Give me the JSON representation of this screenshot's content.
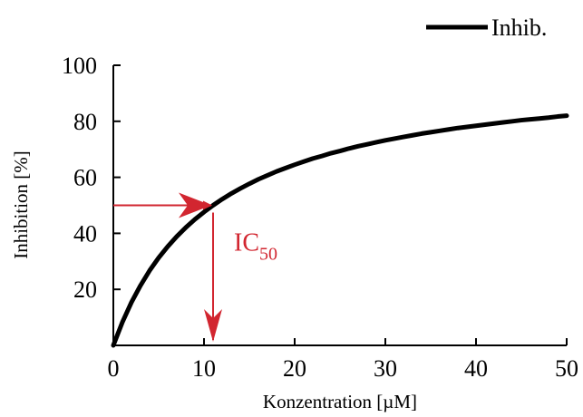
{
  "chart_data": {
    "type": "line",
    "title": "",
    "xlabel": "Konzentration [µM]",
    "ylabel": "Inhibition [%]",
    "xlim": [
      0,
      50
    ],
    "ylim": [
      0,
      100
    ],
    "x_ticks": [
      "0",
      "10",
      "20",
      "30",
      "40",
      "50"
    ],
    "y_ticks": [
      "20",
      "40",
      "60",
      "80",
      "100"
    ],
    "grid": false,
    "legend_position": "top-right",
    "series": [
      {
        "name": "Inhib.",
        "color": "#000000",
        "x": [
          0,
          1,
          2,
          3,
          4,
          5,
          6,
          7,
          8,
          9,
          10,
          11,
          12,
          13,
          14,
          15,
          16,
          17,
          18,
          19,
          20,
          21,
          22,
          23,
          24,
          25,
          26,
          27,
          28,
          29,
          30,
          31,
          32,
          33,
          34,
          35,
          36,
          37,
          38,
          39,
          40,
          41,
          42,
          43,
          44,
          45,
          46,
          47,
          48,
          49,
          50
        ],
        "y": [
          0,
          8.3,
          15.4,
          21.4,
          26.7,
          31.3,
          35.3,
          38.9,
          42.1,
          45,
          47.6,
          50,
          52.2,
          54.2,
          56,
          57.7,
          59.3,
          60.7,
          62.1,
          63.3,
          64.5,
          65.6,
          66.7,
          67.6,
          68.6,
          69.4,
          70.3,
          71.1,
          71.8,
          72.5,
          73.2,
          73.8,
          74.4,
          75,
          75.6,
          76.1,
          76.6,
          77.1,
          77.6,
          78,
          78.4,
          78.8,
          79.2,
          79.6,
          80,
          80.4,
          80.7,
          81,
          81.3,
          81.7,
          82
        ]
      }
    ],
    "annotation": {
      "label_main": "IC",
      "label_sub": "50",
      "x": 11,
      "y": 50,
      "color": "#d22630"
    }
  }
}
